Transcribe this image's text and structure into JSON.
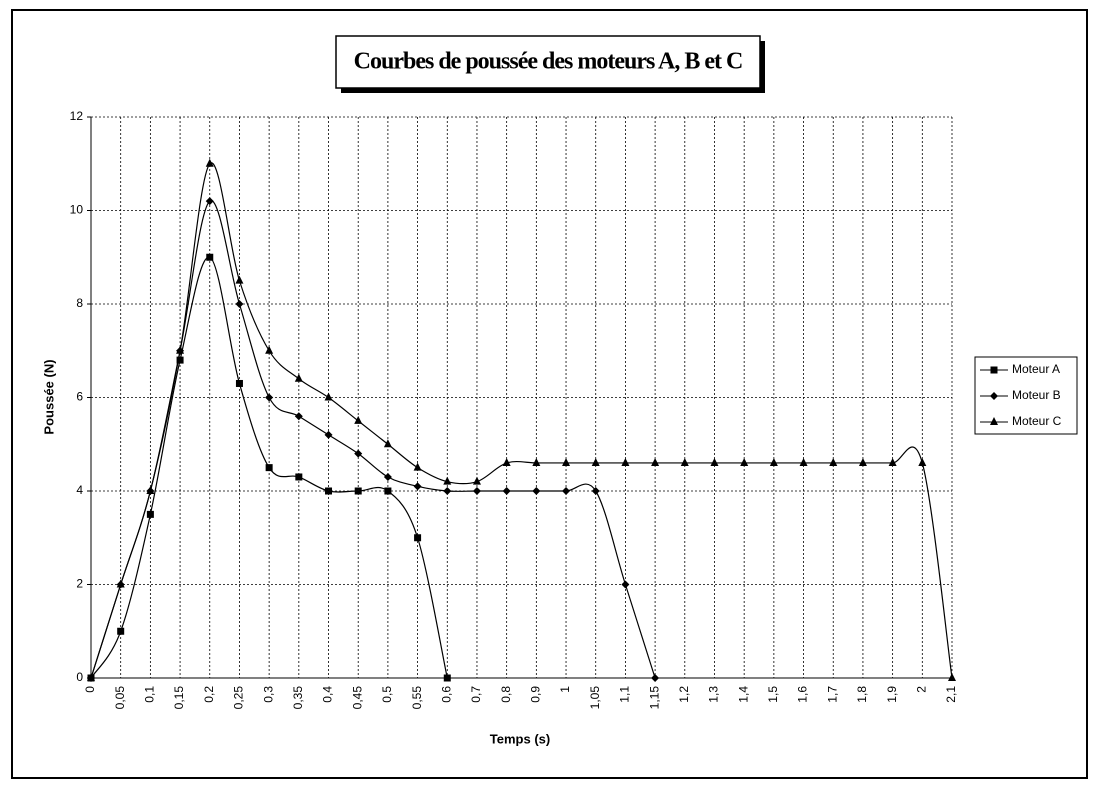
{
  "chart_data": {
    "type": "line",
    "title": "Courbes de poussée des moteurs A, B et C",
    "x_label": "Temps (s)",
    "y_label": "Poussée (N)",
    "categories": [
      "0",
      "0,05",
      "0,1",
      "0,15",
      "0,2",
      "0,25",
      "0,3",
      "0,35",
      "0,4",
      "0,45",
      "0,5",
      "0,55",
      "0,6",
      "0,7",
      "0,8",
      "0,9",
      "1",
      "1,05",
      "1,1",
      "1,15",
      "1,2",
      "1,3",
      "1,4",
      "1,5",
      "1,6",
      "1,7",
      "1,8",
      "1,9",
      "2",
      "2,1"
    ],
    "series": [
      {
        "name": "Moteur A",
        "color": "#000000",
        "marker": "square",
        "values": [
          0,
          1,
          3.5,
          6.8,
          9,
          6.3,
          4.5,
          4.3,
          4,
          4,
          4,
          3,
          0,
          null,
          null,
          null,
          null,
          null,
          null,
          null,
          null,
          null,
          null,
          null,
          null,
          null,
          null,
          null,
          null,
          null
        ]
      },
      {
        "name": "Moteur B",
        "color": "#000000",
        "marker": "diamond",
        "values": [
          0,
          2,
          4,
          7,
          10.2,
          8,
          6,
          5.6,
          5.2,
          4.8,
          4.3,
          4.1,
          4,
          4,
          4,
          4,
          4,
          4,
          2,
          0,
          null,
          null,
          null,
          null,
          null,
          null,
          null,
          null,
          null,
          null
        ]
      },
      {
        "name": "Moteur C",
        "color": "#000000",
        "marker": "triangle",
        "values": [
          0,
          2,
          4,
          7,
          11,
          8.5,
          7,
          6.4,
          6,
          5.5,
          5,
          4.5,
          4.2,
          4.2,
          4.6,
          4.6,
          4.6,
          4.6,
          4.6,
          4.6,
          4.6,
          4.6,
          4.6,
          4.6,
          4.6,
          4.6,
          4.6,
          4.6,
          4.6,
          0
        ]
      }
    ],
    "ylim": [
      0,
      12
    ],
    "yticks": [
      0,
      2,
      4,
      6,
      8,
      10,
      12
    ],
    "grid": true,
    "smooth": true,
    "legend": "right"
  }
}
